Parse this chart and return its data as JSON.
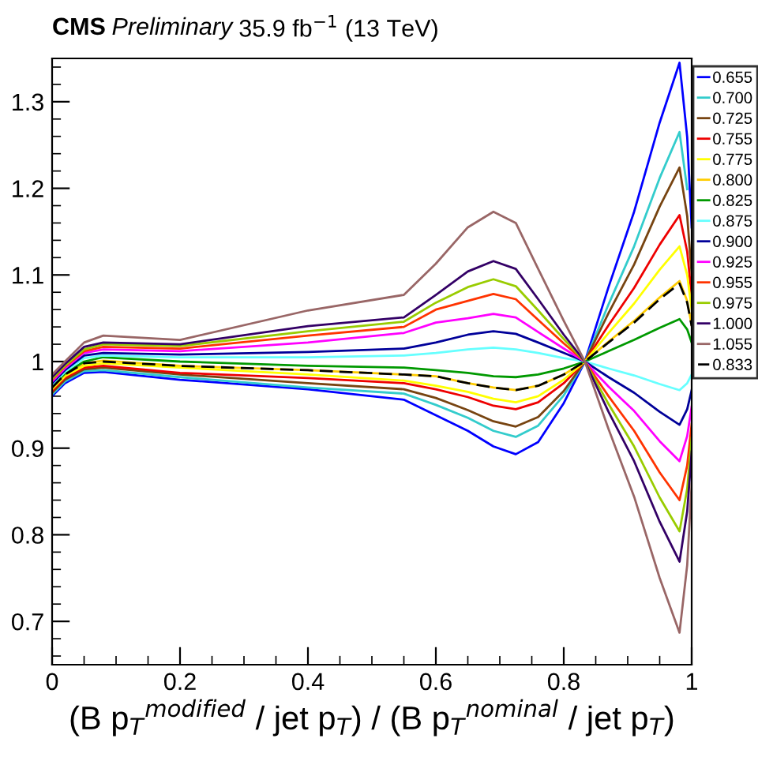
{
  "chart_data": {
    "type": "line",
    "title": "CMS Preliminary 35.9 fb$^{−1}$ (13 TeV)",
    "xlabel": "(B p$_{T}$$^{modified}$ / jet p$_{T}$) / (B p$_{T}$$^{nominal}$ / jet p$_{T}$)",
    "x": [
      0,
      0.02,
      0.05,
      0.08,
      0.2,
      0.4,
      0.55,
      0.6,
      0.65,
      0.69,
      0.725,
      0.76,
      0.8,
      0.833,
      0.87,
      0.91,
      0.95,
      0.981,
      0.993,
      1.0
    ],
    "xlim": [
      0,
      1
    ],
    "xticks": [
      0,
      0.2,
      0.4,
      0.6,
      0.8,
      1
    ],
    "ylim": [
      0.65,
      1.35
    ],
    "yticks": [
      0.7,
      0.8,
      0.9,
      1,
      1.1,
      1.2,
      1.3
    ],
    "grid": false,
    "legend": "right",
    "line_style": "solid",
    "series": [
      {
        "name": "0.655",
        "color": "#0000ff",
        "values": [
          0.96,
          0.975,
          0.987,
          0.988,
          0.979,
          0.968,
          0.956,
          0.938,
          0.92,
          0.902,
          0.893,
          0.907,
          0.952,
          1.0,
          1.086,
          1.173,
          1.276,
          1.345,
          1.259,
          1.155
        ]
      },
      {
        "name": "0.700",
        "color": "#33cccc",
        "values": [
          0.962,
          0.977,
          0.989,
          0.99,
          0.982,
          0.97,
          0.963,
          0.95,
          0.935,
          0.92,
          0.913,
          0.926,
          0.961,
          1.0,
          1.066,
          1.133,
          1.212,
          1.265,
          1.199,
          null
        ]
      },
      {
        "name": "0.725",
        "color": "#774411",
        "values": [
          0.964,
          0.979,
          0.991,
          0.993,
          0.985,
          0.975,
          0.968,
          0.958,
          0.944,
          0.931,
          0.925,
          0.936,
          0.966,
          1.0,
          1.056,
          1.112,
          1.179,
          1.224,
          1.168,
          1.101
        ]
      },
      {
        "name": "0.755",
        "color": "#ee0000",
        "values": [
          0.966,
          0.981,
          0.993,
          0.995,
          0.987,
          0.981,
          0.975,
          0.968,
          0.959,
          0.949,
          0.945,
          0.953,
          0.975,
          1.0,
          1.042,
          1.085,
          1.135,
          1.169,
          1.127,
          1.076
        ]
      },
      {
        "name": "0.775",
        "color": "#ffff00",
        "values": [
          0.968,
          0.983,
          0.995,
          0.998,
          0.993,
          0.985,
          0.978,
          0.972,
          0.965,
          0.957,
          0.953,
          0.96,
          0.979,
          1.0,
          1.033,
          1.067,
          1.106,
          1.133,
          1.1,
          1.06
        ]
      },
      {
        "name": "0.800",
        "color": "#ffcc00",
        "values": [
          0.97,
          0.985,
          0.998,
          1.001,
          0.995,
          0.99,
          0.985,
          0.983,
          0.975,
          0.97,
          0.967,
          0.972,
          0.985,
          1.0,
          1.023,
          1.047,
          1.074,
          1.093,
          1.07,
          1.042
        ]
      },
      {
        "name": "0.825",
        "color": "#009900",
        "values": [
          0.972,
          0.986,
          1.0,
          1.005,
          1.0,
          0.995,
          0.993,
          0.99,
          0.987,
          0.983,
          0.982,
          0.985,
          0.992,
          1.0,
          1.012,
          1.025,
          1.039,
          1.049,
          1.037,
          1.022
        ]
      },
      {
        "name": "0.875",
        "color": "#66ffff",
        "values": [
          0.973,
          0.988,
          1.004,
          1.007,
          1.005,
          1.005,
          1.007,
          1.01,
          1.014,
          1.016,
          1.014,
          1.01,
          1.004,
          1.0,
          0.992,
          0.984,
          0.974,
          0.967,
          0.975,
          0.985
        ]
      },
      {
        "name": "0.900",
        "color": "#000099",
        "values": [
          0.975,
          0.99,
          1.007,
          1.01,
          1.008,
          1.011,
          1.015,
          1.022,
          1.031,
          1.035,
          1.032,
          1.022,
          1.01,
          1.0,
          0.982,
          0.964,
          0.942,
          0.927,
          0.945,
          0.967
        ]
      },
      {
        "name": "0.925",
        "color": "#ff00ff",
        "values": [
          0.977,
          0.992,
          1.01,
          1.014,
          1.012,
          1.022,
          1.033,
          1.045,
          1.05,
          1.055,
          1.051,
          1.034,
          1.015,
          1.0,
          0.971,
          0.943,
          0.908,
          0.885,
          0.914,
          0.948
        ]
      },
      {
        "name": "0.955",
        "color": "#ff3300",
        "values": [
          0.979,
          0.994,
          1.012,
          1.017,
          1.015,
          1.03,
          1.04,
          1.06,
          1.07,
          1.078,
          1.072,
          1.048,
          1.021,
          1.0,
          0.96,
          0.92,
          0.872,
          0.84,
          0.88,
          0.928
        ]
      },
      {
        "name": "0.975",
        "color": "#99cc00",
        "values": [
          0.98,
          0.995,
          1.014,
          1.02,
          1.018,
          1.035,
          1.046,
          1.068,
          1.086,
          1.095,
          1.087,
          1.059,
          1.026,
          1.0,
          0.951,
          0.902,
          0.843,
          0.804,
          0.853,
          0.912
        ]
      },
      {
        "name": "1.000",
        "color": "#330066",
        "values": [
          0.982,
          0.997,
          1.017,
          1.022,
          1.02,
          1.041,
          1.051,
          1.077,
          1.104,
          1.116,
          1.107,
          1.072,
          1.031,
          1.0,
          0.942,
          0.885,
          0.815,
          0.769,
          0.827,
          0.896
        ]
      },
      {
        "name": "1.055",
        "color": "#996666",
        "values": [
          0.985,
          1.0,
          1.022,
          1.03,
          1.025,
          1.059,
          1.077,
          1.113,
          1.155,
          1.173,
          1.16,
          1.107,
          1.047,
          1.0,
          0.922,
          0.844,
          0.75,
          0.687,
          0.765,
          0.859
        ]
      },
      {
        "name": "0.833",
        "color": "#000000",
        "line_style": "dashed",
        "values": [
          0.97,
          0.985,
          0.998,
          1.0,
          0.995,
          0.99,
          0.985,
          0.983,
          0.975,
          0.97,
          0.967,
          0.972,
          0.985,
          1.0,
          1.022,
          1.045,
          1.072,
          1.09,
          1.068,
          1.041
        ]
      }
    ]
  }
}
